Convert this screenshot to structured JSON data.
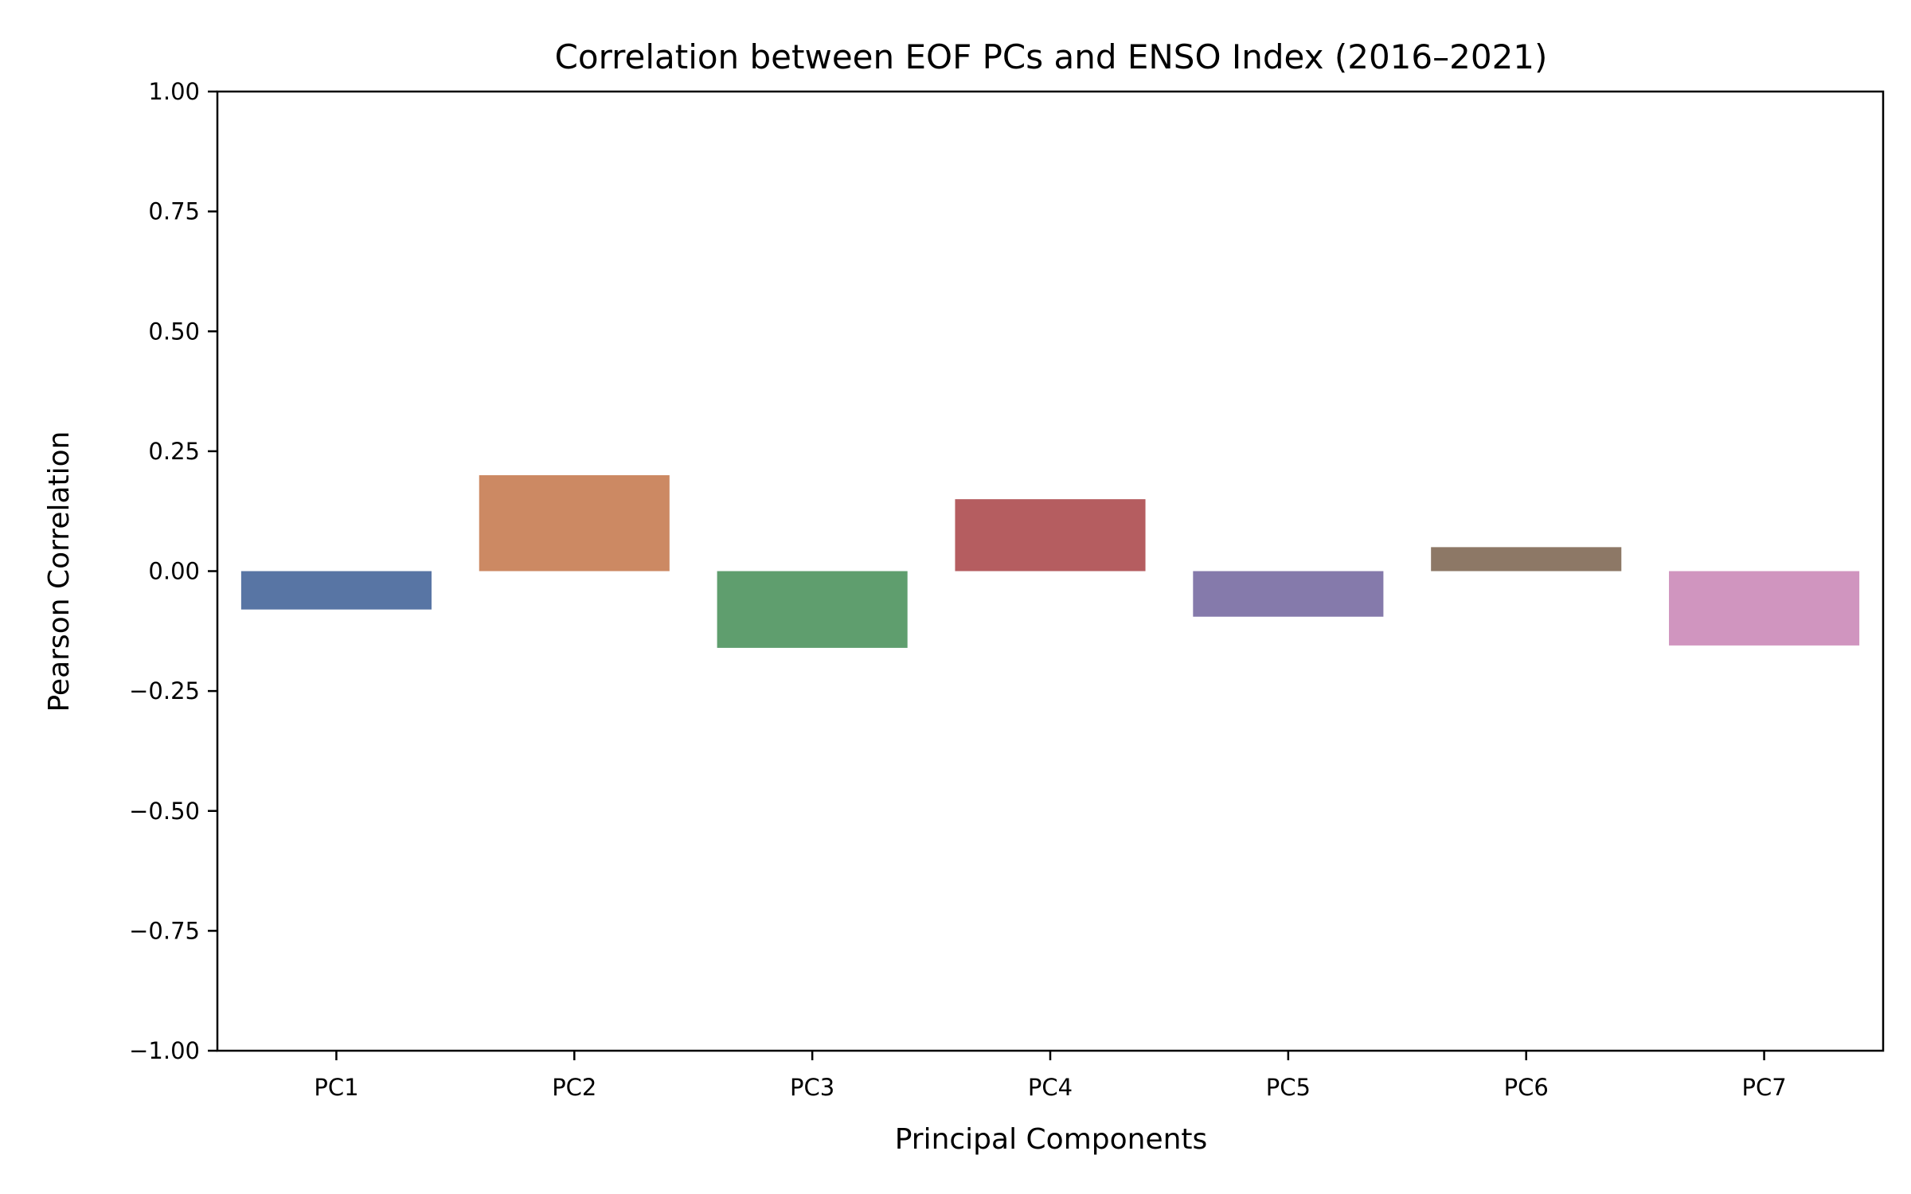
{
  "chart_data": {
    "type": "bar",
    "title": "Correlation between EOF PCs and ENSO Index (2016–2021)",
    "xlabel": "Principal Components",
    "ylabel": "Pearson Correlation",
    "categories": [
      "PC1",
      "PC2",
      "PC3",
      "PC4",
      "PC5",
      "PC6",
      "PC7"
    ],
    "values": [
      -0.08,
      0.2,
      -0.16,
      0.15,
      -0.095,
      0.05,
      -0.155
    ],
    "colors": [
      "#5875a4",
      "#cc8963",
      "#5f9e6e",
      "#b55d60",
      "#857aab",
      "#8d7866",
      "#d095bf"
    ],
    "ylim": [
      -1.0,
      1.0
    ],
    "yticks": [
      1.0,
      0.75,
      0.5,
      0.25,
      0.0,
      -0.25,
      -0.5,
      -0.75,
      -1.0
    ],
    "ytick_labels": [
      "1.00",
      "0.75",
      "0.50",
      "0.25",
      "0.00",
      "−0.25",
      "−0.50",
      "−0.75",
      "−1.00"
    ],
    "grid": false,
    "legend": "none"
  }
}
